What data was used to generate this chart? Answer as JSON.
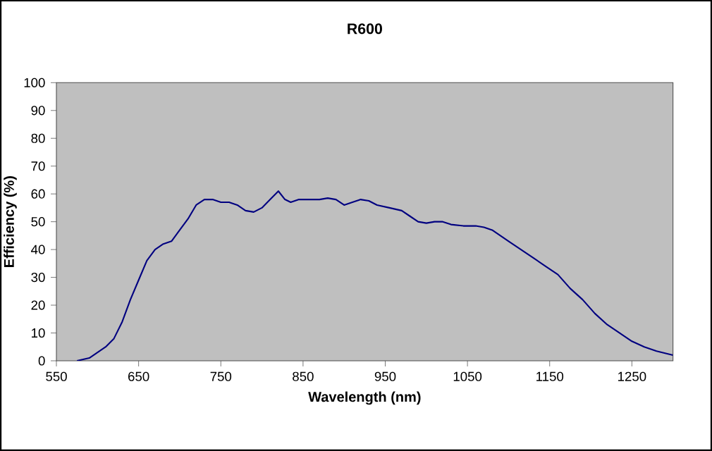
{
  "chart_data": {
    "type": "line",
    "title": "R600",
    "xlabel": "Wavelength (nm)",
    "ylabel": "Efficiency (%)",
    "x": [
      575,
      590,
      600,
      610,
      620,
      630,
      640,
      650,
      660,
      670,
      680,
      690,
      700,
      710,
      720,
      730,
      740,
      750,
      760,
      770,
      780,
      790,
      800,
      810,
      820,
      828,
      835,
      845,
      860,
      870,
      880,
      890,
      900,
      910,
      920,
      930,
      940,
      955,
      970,
      980,
      990,
      1000,
      1010,
      1020,
      1030,
      1045,
      1060,
      1070,
      1080,
      1090,
      1100,
      1115,
      1130,
      1145,
      1160,
      1175,
      1190,
      1205,
      1220,
      1235,
      1250,
      1265,
      1280,
      1300
    ],
    "series": [
      {
        "color": "#000080",
        "values": [
          0,
          1,
          3,
          5,
          8,
          14,
          22,
          29,
          36,
          40,
          42,
          43,
          47,
          51,
          56,
          58,
          58,
          57,
          57,
          56,
          54,
          53.5,
          55,
          58,
          61,
          58,
          57,
          58,
          58,
          58,
          58.5,
          58,
          56,
          57,
          58,
          57.5,
          56,
          55,
          54,
          52,
          50,
          49.5,
          50,
          50,
          49,
          48.5,
          48.5,
          48,
          47,
          45,
          43,
          40,
          37,
          34,
          31,
          26,
          22,
          17,
          13,
          10,
          7,
          5,
          3.5,
          2
        ]
      }
    ],
    "xlim": [
      550,
      1300
    ],
    "ylim": [
      0,
      100
    ],
    "xticks": [
      550,
      650,
      750,
      850,
      950,
      1050,
      1150,
      1250
    ],
    "yticks": [
      0,
      10,
      20,
      30,
      40,
      50,
      60,
      70,
      80,
      90,
      100
    ],
    "marker": "none",
    "line_style": "solid",
    "grid": false
  }
}
